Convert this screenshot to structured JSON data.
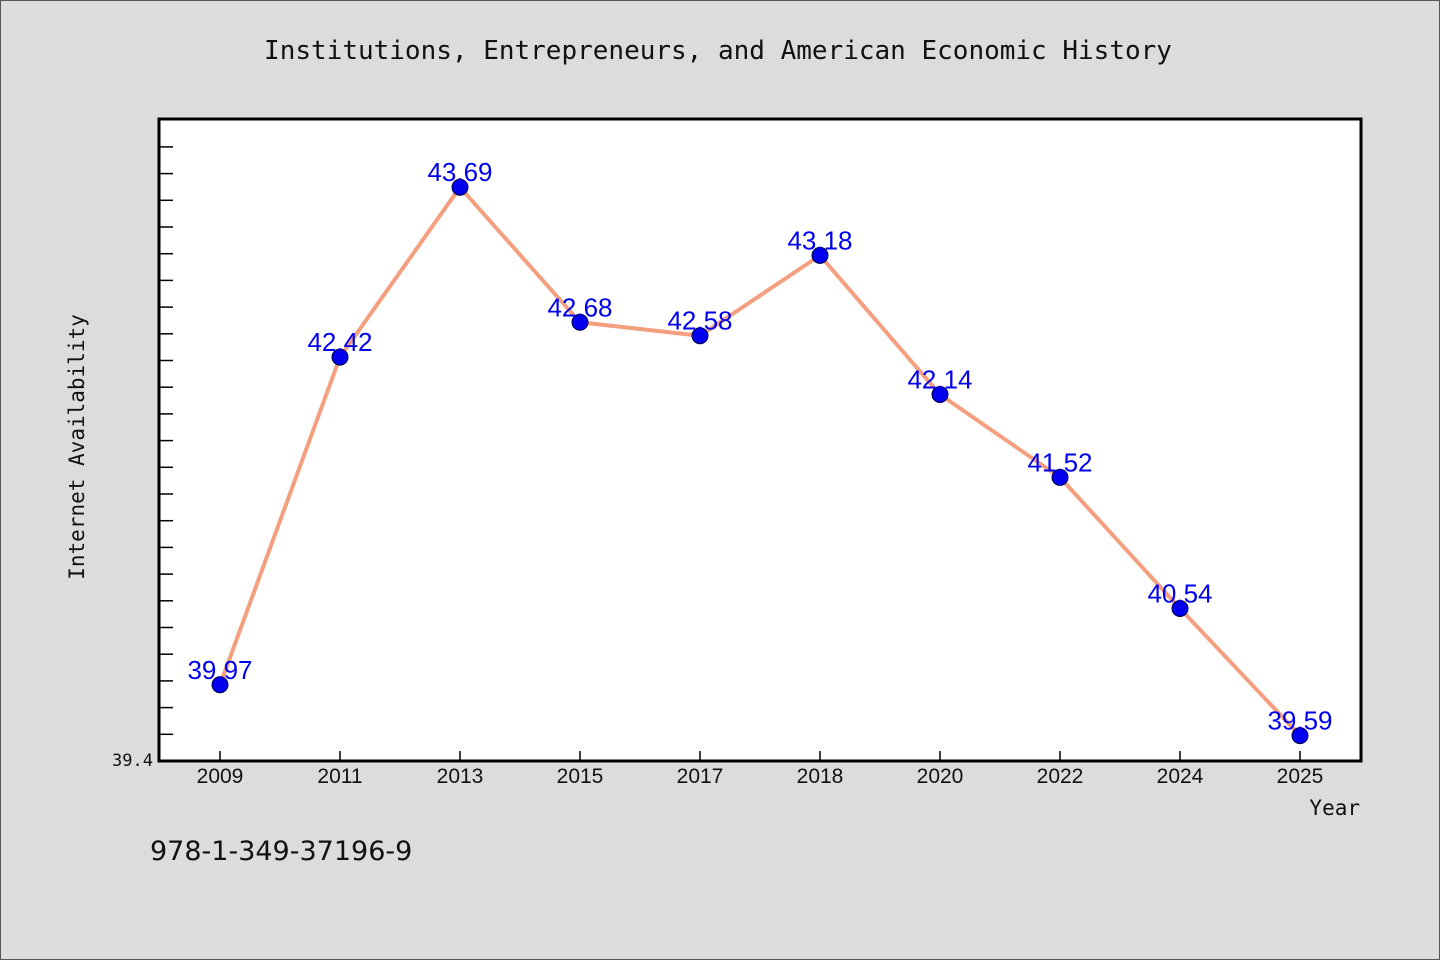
{
  "chart_data": {
    "type": "line",
    "title": "Institutions, Entrepreneurs, and American Economic History",
    "xlabel": "Year",
    "ylabel": "Internet Availability",
    "categories": [
      "2009",
      "2011",
      "2013",
      "2015",
      "2017",
      "2018",
      "2020",
      "2022",
      "2024",
      "2025"
    ],
    "series": [
      {
        "values": [
          39.97,
          42.42,
          43.69,
          42.68,
          42.58,
          43.18,
          42.14,
          41.52,
          40.54,
          39.59
        ],
        "labels": [
          "39.97",
          "42.42",
          "43.69",
          "42.68",
          "42.58",
          "43.18",
          "42.14",
          "41.52",
          "40.54",
          "39.59"
        ]
      }
    ],
    "ylim": [
      39.4,
      44.2
    ],
    "y_tick_labels": [
      "39.4"
    ],
    "grid": false,
    "colors": {
      "line": "#f4a080",
      "marker": "#0000ee",
      "data_label": "#0000ee",
      "plot_background": "#ffffff",
      "figure_background": "#dcdcdc"
    }
  },
  "footer": {
    "isbn": "978-1-349-37196-9"
  }
}
